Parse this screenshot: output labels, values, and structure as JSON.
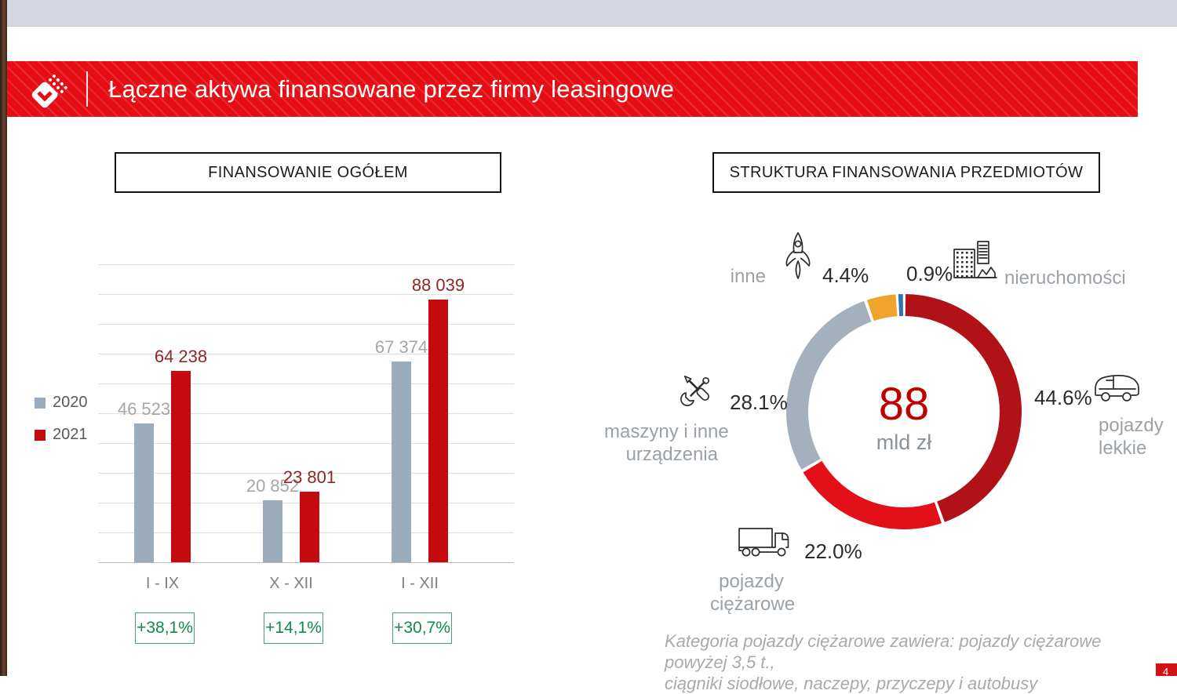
{
  "header": {
    "title": "Łączne aktywa finansowane przez firmy leasingowe",
    "accent_color": "#e60d15"
  },
  "left_panel": {
    "title": "FINANSOWANIE OGÓŁEM",
    "legend": [
      {
        "label": "2020",
        "color": "#9bacbd"
      },
      {
        "label": "2021",
        "color": "#c50a10"
      }
    ],
    "growth_badges": [
      "+38,1%",
      "+14,1%",
      "+30,7%"
    ],
    "badge_color": "#0f8a4d"
  },
  "right_panel": {
    "title": "STRUKTURA FINANSOWANIA PRZEDMIOTÓW",
    "center_value": "88",
    "center_unit": "mld zł",
    "callouts": {
      "inne": {
        "label": "inne",
        "pct": "4.4%",
        "icon": "rocket-icon"
      },
      "nieruchomosci": {
        "label": "nieruchomości",
        "pct": "0.9%",
        "icon": "buildings-icon"
      },
      "maszyny": {
        "label_line1": "maszyny i inne",
        "label_line2": "urządzenia",
        "pct": "28.1%",
        "icon": "tools-icon"
      },
      "pojazdy_lekkie": {
        "label_line1": "pojazdy",
        "label_line2": "lekkie",
        "pct": "44.6%",
        "icon": "van-icon"
      },
      "pojazdy_ciezarowe": {
        "label_line1": "pojazdy",
        "label_line2": "ciężarowe",
        "pct": "22.0%",
        "icon": "truck-icon"
      }
    },
    "footnote_line1": "Kategoria pojazdy ciężarowe zawiera: pojazdy ciężarowe powyżej 3,5 t.,",
    "footnote_line2": "ciągniki siodłowe, naczepy, przyczepy i autobusy"
  },
  "footer": {
    "page_number": "4"
  },
  "chart_data": [
    {
      "type": "bar",
      "title": "FINANSOWANIE OGÓŁEM",
      "categories": [
        "I - IX",
        "X - XII",
        "I - XII"
      ],
      "series": [
        {
          "name": "2020",
          "color": "#9bacbd",
          "values": [
            46523,
            20852,
            67374
          ],
          "labels": [
            "46 523",
            "20 852",
            "67 374"
          ]
        },
        {
          "name": "2021",
          "color": "#c50a10",
          "values": [
            64238,
            23801,
            88039
          ],
          "labels": [
            "64 238",
            "23 801",
            "88 039"
          ]
        }
      ],
      "ylim": [
        0,
        100000
      ],
      "gridline_step": 10000,
      "grid": true,
      "legend_position": "left",
      "growth_vs_prev_year": [
        "+38,1%",
        "+14,1%",
        "+30,7%"
      ]
    },
    {
      "type": "pie",
      "subtype": "donut",
      "title": "STRUKTURA FINANSOWANIA PRZEDMIOTÓW",
      "center_label": "88 mld zł",
      "start_angle_deg": 0,
      "direction": "clockwise",
      "segments": [
        {
          "label": "pojazdy lekkie",
          "pct": 44.6,
          "color": "#b01218"
        },
        {
          "label": "pojazdy ciężarowe",
          "pct": 22.0,
          "color": "#e41019"
        },
        {
          "label": "maszyny i inne urządzenia",
          "pct": 28.1,
          "color": "#a4b1bc"
        },
        {
          "label": "inne",
          "pct": 4.4,
          "color": "#f0a42c"
        },
        {
          "label": "nieruchomości",
          "pct": 0.9,
          "color": "#2e74b5"
        }
      ]
    }
  ]
}
